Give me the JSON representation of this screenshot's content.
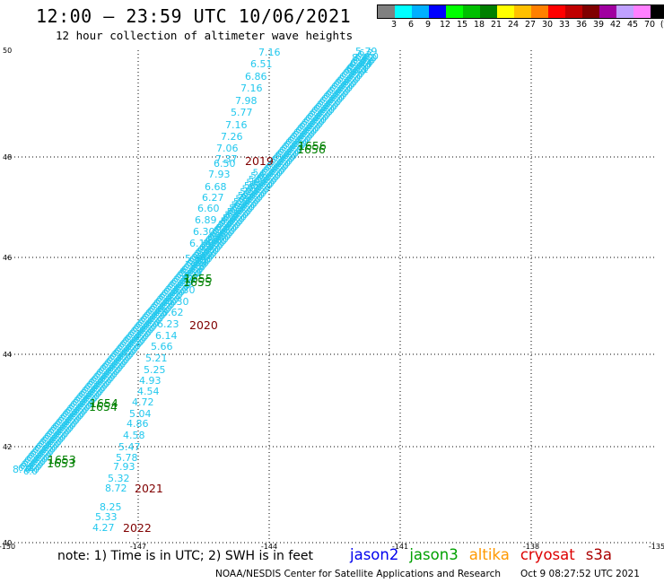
{
  "header": {
    "title": "12:00 – 23:59 UTC 10/06/2021",
    "subtitle": "12 hour collection of altimeter wave heights"
  },
  "legend": {
    "colors": [
      "#808080",
      "#00ffff",
      "#00b0ff",
      "#0000ff",
      "#00ff00",
      "#00c000",
      "#008000",
      "#ffff00",
      "#ffc000",
      "#ff8000",
      "#ff0000",
      "#c00000",
      "#800000",
      "#a000a0",
      "#c0a0ff",
      "#ff80ff",
      "#000000"
    ],
    "labels": [
      "3",
      "6",
      "9",
      "12",
      "15",
      "18",
      "21",
      "24",
      "27",
      "30",
      "33",
      "36",
      "39",
      "42",
      "45",
      "70",
      "(ft)"
    ]
  },
  "map": {
    "lat_labels": [
      "50",
      "48",
      "46",
      "44",
      "42",
      "40"
    ],
    "lon_labels": [
      "-150",
      "-147",
      "-144",
      "-141",
      "-138",
      "-135"
    ],
    "track_color": "#22c8ee",
    "track_a": [
      "7.16",
      "6.51",
      "6.86",
      "7.16",
      "7.98",
      "5.77",
      "7.16",
      "7.26",
      "7.06",
      "7.37",
      "6.50",
      "7.93",
      "6.68",
      "6.27",
      "6.60",
      "6.89",
      "6.30",
      "6.14",
      "5.84",
      "5.55",
      "5.30",
      "6.30",
      "5.62",
      "6.23",
      "6.14",
      "5.66",
      "5.21",
      "5.25",
      "4.93",
      "4.54",
      "4.72",
      "5.04",
      "4.86",
      "4.58",
      "5.47",
      "5.78",
      "7.93",
      "5.32",
      "8.72",
      "8.25",
      "5.33",
      "4.27"
    ],
    "track_b_end_labels": [
      "5.79",
      "8.42",
      "6.94",
      "6.11"
    ],
    "track_b_start_label": "8.74",
    "time_labels": [
      {
        "text": "2019",
        "color": "#800000"
      },
      {
        "text": "2020",
        "color": "#800000"
      },
      {
        "text": "2021",
        "color": "#800000"
      },
      {
        "text": "2022",
        "color": "#800000"
      },
      {
        "text": "1656",
        "color": "#008000"
      },
      {
        "text": "1655",
        "color": "#008000"
      },
      {
        "text": "1654",
        "color": "#008000"
      },
      {
        "text": "1653",
        "color": "#008000"
      }
    ]
  },
  "footer": {
    "note": "note: 1) Time is in UTC; 2) SWH is in feet",
    "satellites": [
      {
        "name": "jason2",
        "color": "#0000ee"
      },
      {
        "name": "jason3",
        "color": "#00a000"
      },
      {
        "name": "altika",
        "color": "#ff9900"
      },
      {
        "name": "cryosat",
        "color": "#dd0000"
      },
      {
        "name": "s3a",
        "color": "#aa0000"
      }
    ],
    "credit": "NOAA/NESDIS Center for Satellite Applications and Research",
    "timestamp": "Oct  9 08:27:52 UTC 2021"
  }
}
